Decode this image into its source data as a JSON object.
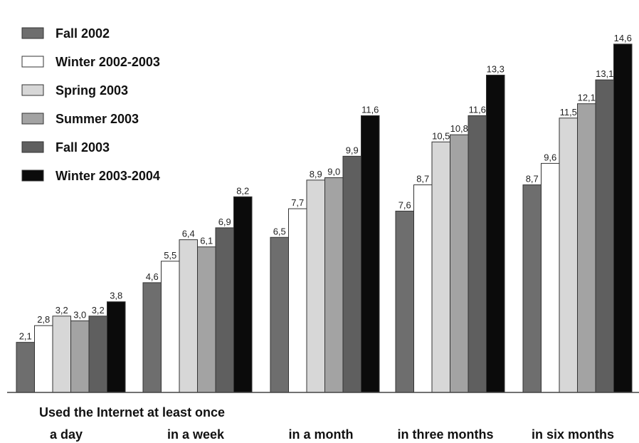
{
  "chart_data": {
    "type": "bar",
    "title": "",
    "xlabel": "Used the Internet at least once",
    "ylabel": "",
    "categories": [
      "a day",
      "in a week",
      "in a month",
      "in three months",
      "in six months"
    ],
    "ylim": [
      0,
      15
    ],
    "grid": false,
    "legend_position": "top-left",
    "series": [
      {
        "name": "Fall 2002",
        "color": "#6e6e6e",
        "values": [
          2.1,
          4.6,
          6.5,
          7.6,
          8.7
        ],
        "labels": [
          "2,1",
          "4,6",
          "6,5",
          "7,6",
          "8,7"
        ]
      },
      {
        "name": "Winter 2002-2003",
        "color": "#ffffff",
        "values": [
          2.8,
          5.5,
          7.7,
          8.7,
          9.6
        ],
        "labels": [
          "2,8",
          "5,5",
          "7,7",
          "8,7",
          "9,6"
        ]
      },
      {
        "name": "Spring 2003",
        "color": "#d7d7d7",
        "values": [
          3.2,
          6.4,
          8.9,
          10.5,
          11.5
        ],
        "labels": [
          "3,2",
          "6,4",
          "8,9",
          "10,5",
          "11,5"
        ]
      },
      {
        "name": "Summer 2003",
        "color": "#a3a3a3",
        "values": [
          3.0,
          6.1,
          9.0,
          10.8,
          12.1
        ],
        "labels": [
          "3,0",
          "6,1",
          "9,0",
          "10,8",
          "12,1"
        ]
      },
      {
        "name": "Fall 2003",
        "color": "#5f5f5f",
        "values": [
          3.2,
          6.9,
          9.9,
          11.6,
          13.1
        ],
        "labels": [
          "3,2",
          "6,9",
          "9,9",
          "11,6",
          "13,1"
        ]
      },
      {
        "name": "Winter 2003-2004",
        "color": "#0b0b0b",
        "values": [
          3.8,
          8.2,
          11.6,
          13.3,
          14.6
        ],
        "labels": [
          "3,8",
          "8,2",
          "11,6",
          "13,3",
          "14,6"
        ]
      }
    ]
  }
}
